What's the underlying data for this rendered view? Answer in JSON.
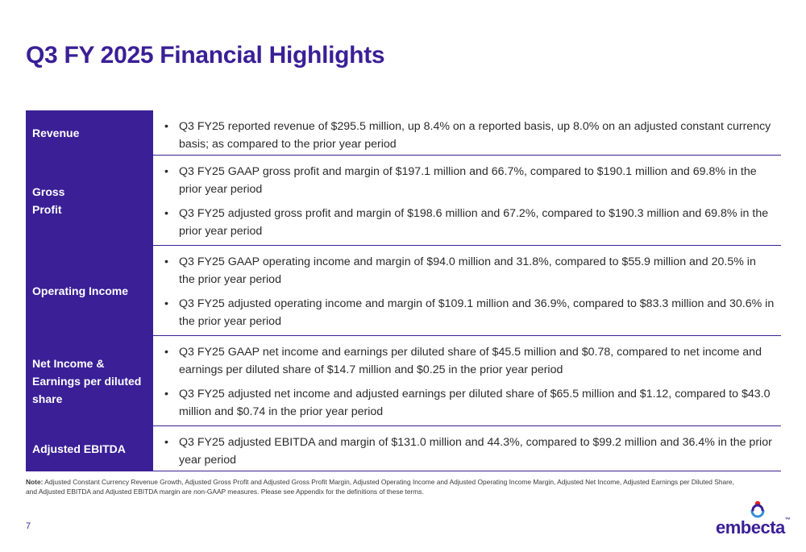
{
  "title": "Q3 FY 2025 Financial Highlights",
  "rows": [
    {
      "label": "Revenue",
      "bullets": [
        "Q3 FY25 reported revenue of $295.5 million, up 8.4% on a reported basis, up 8.0% on an adjusted constant currency basis; as compared to the prior year period"
      ]
    },
    {
      "label": "Gross\nProfit",
      "bullets": [
        "Q3 FY25 GAAP gross profit and margin of $197.1 million and 66.7%, compared to $190.1 million and 69.8% in the prior year period",
        "Q3 FY25 adjusted gross profit and margin of $198.6 million and 67.2%, compared to $190.3 million and 69.8% in the prior year period"
      ]
    },
    {
      "label": "Operating Income",
      "bullets": [
        "Q3 FY25 GAAP operating income and margin of $94.0 million and 31.8%, compared to $55.9 million and 20.5% in the prior year period",
        "Q3 FY25 adjusted operating income and margin of $109.1 million and 36.9%, compared to $83.3 million and 30.6% in the prior year period"
      ]
    },
    {
      "label": "Net Income & Earnings per diluted share",
      "bullets": [
        "Q3 FY25 GAAP net income and earnings per diluted share of $45.5 million and $0.78, compared to net income and earnings per diluted share of $14.7 million and $0.25 in the prior year period",
        "Q3 FY25 adjusted net income and adjusted earnings per diluted share of $65.5 million and $1.12, compared to $43.0 million and $0.74 in the prior year period"
      ]
    },
    {
      "label": "Adjusted EBITDA",
      "bullets": [
        "Q3 FY25 adjusted EBITDA and margin of $131.0 million and 44.3%, compared to $99.2 million and 36.4% in the prior year period"
      ]
    }
  ],
  "note": {
    "label": "Note:",
    "text": "Adjusted Constant Currency Revenue Growth, Adjusted Gross Profit and Adjusted Gross Profit Margin, Adjusted Operating Income and Adjusted Operating Income Margin, Adjusted Net Income, Adjusted Earnings per Diluted Share, and Adjusted EBITDA and Adjusted EBITDA margin are non-GAAP measures. Please see Appendix for the definitions of these terms."
  },
  "page_number": "7",
  "logo": {
    "text": "embecta",
    "tm": "™"
  },
  "colors": {
    "brand_purple": "#3a1f96",
    "accent_red": "#e2231a",
    "accent_blue": "#3a8fd6"
  }
}
